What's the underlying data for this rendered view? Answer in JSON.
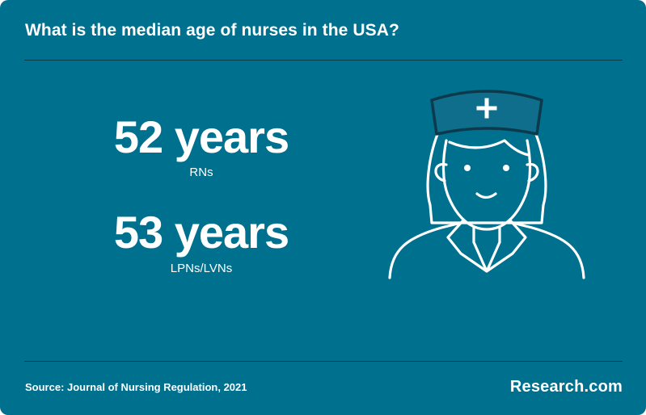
{
  "header": {
    "title": "What is the median age of nurses in the USA?"
  },
  "stats": [
    {
      "value": "52 years",
      "label": "RNs"
    },
    {
      "value": "53 years",
      "label": "LPNs/LVNs"
    }
  ],
  "illustration": {
    "icon": "nurse-icon"
  },
  "footer": {
    "source": "Source: Journal of Nursing Regulation, 2021",
    "brand": "Research.com"
  },
  "colors": {
    "background": "#00708f",
    "divider": "#0b3a4c",
    "cap": "#0e6e8c",
    "text": "#ffffff"
  }
}
